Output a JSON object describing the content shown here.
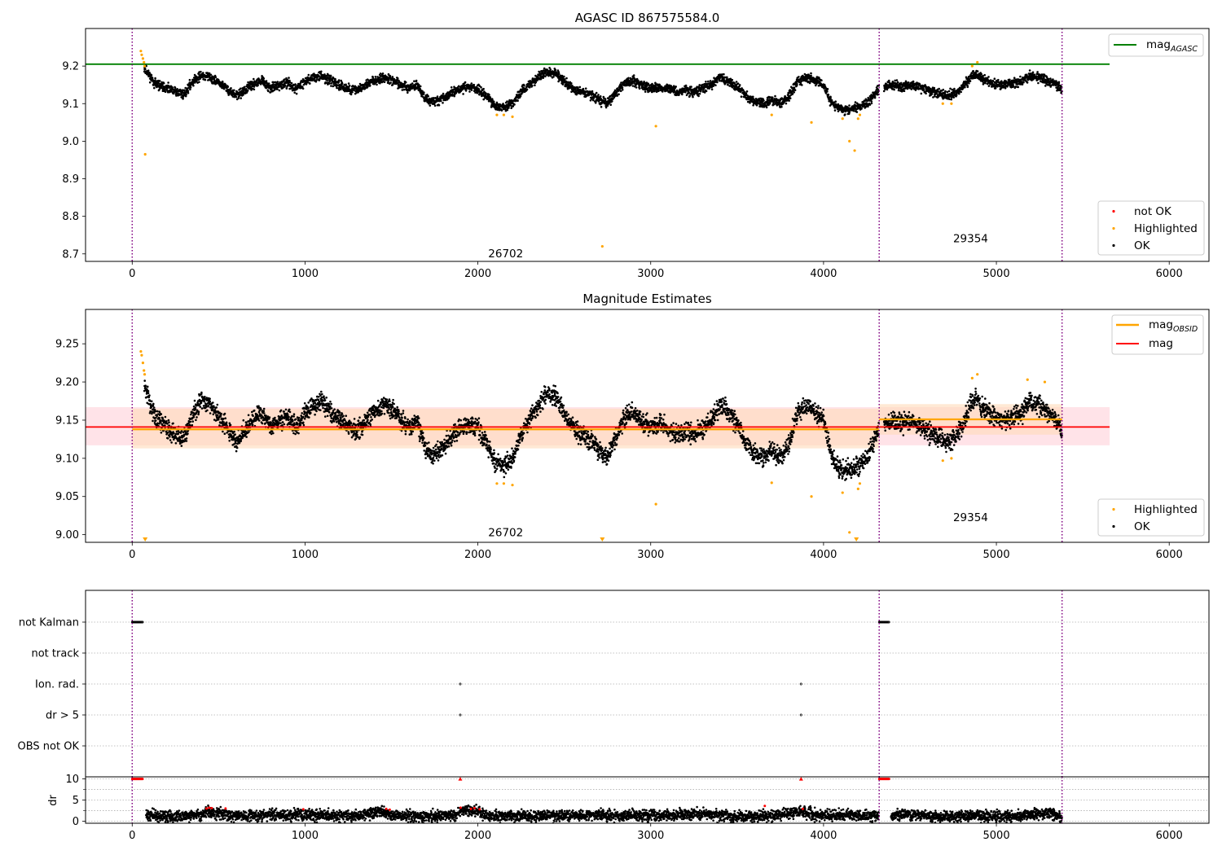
{
  "colors": {
    "ok": "#000000",
    "highlighted": "#ffa500",
    "not_ok": "#ff0000",
    "agasc_line": "#008000",
    "mag_line": "#ff0000",
    "mag_obsid_line": "#ffa500",
    "obsid_boundary": "#800080",
    "mag_band": "#ffc0cb",
    "mag_obsid_band": "#ffdab9"
  },
  "chart_data": [
    {
      "type": "scatter",
      "title": "AGASC ID 867575584.0",
      "xlim": [
        -270,
        6230
      ],
      "ylim": [
        8.68,
        9.3
      ],
      "xticks": [
        "0",
        "1000",
        "2000",
        "3000",
        "4000",
        "5000",
        "6000"
      ],
      "yticks": [
        "8.7",
        "8.8",
        "8.9",
        "9.0",
        "9.1",
        "9.2"
      ],
      "grid": false,
      "obsid_boundaries": [
        0,
        4322,
        5380
      ],
      "obsid_labels": [
        {
          "text": "26702",
          "x": 2161,
          "y": 8.7
        },
        {
          "text": "29354",
          "x": 4851,
          "y": 8.74
        }
      ],
      "reference_lines": [
        {
          "name": "mag_AGASC",
          "y": 9.205,
          "x": [
            -270,
            5655
          ]
        }
      ],
      "legend_lines": {
        "entries": [
          "mag"
        ],
        "subscripts": [
          "AGASC"
        ],
        "placement": "top-right"
      },
      "legend_points": {
        "entries": [
          "not OK",
          "Highlighted",
          "OK"
        ],
        "placement": "lower-right"
      },
      "highlighted_points": [
        [
          50,
          9.24
        ],
        [
          55,
          9.23
        ],
        [
          62,
          9.22
        ],
        [
          68,
          9.21
        ],
        [
          72,
          9.2
        ],
        [
          75,
          8.965
        ],
        [
          2110,
          9.07
        ],
        [
          2150,
          9.07
        ],
        [
          2200,
          9.065
        ],
        [
          2720,
          8.72
        ],
        [
          3030,
          9.04
        ],
        [
          3700,
          9.07
        ],
        [
          3930,
          9.05
        ],
        [
          4110,
          9.06
        ],
        [
          4150,
          9.0
        ],
        [
          4180,
          8.975
        ],
        [
          4200,
          9.06
        ],
        [
          4210,
          9.07
        ],
        [
          4690,
          9.1
        ],
        [
          4740,
          9.1
        ],
        [
          4860,
          9.2
        ],
        [
          4890,
          9.21
        ]
      ],
      "series": [
        {
          "name": "mag",
          "segments": [
            {
              "x": [
                70,
                100,
                130,
                200,
                300,
                350,
                400,
                450,
                500,
                550,
                600,
                650,
                700,
                750,
                800,
                850,
                900,
                950,
                1000,
                1050,
                1100,
                1150,
                1200,
                1250,
                1300,
                1350,
                1400,
                1450,
                1500,
                1550,
                1600,
                1650,
                1700,
                1750,
                1800,
                1850,
                1900,
                1950,
                2000,
                2050,
                2100,
                2150,
                2200,
                2250,
                2300,
                2350,
                2400,
                2450,
                2500,
                2550,
                2600,
                2650,
                2700,
                2750,
                2800,
                2850,
                2900,
                2950,
                3000,
                3050,
                3100,
                3150,
                3200,
                3250,
                3300,
                3350,
                3400,
                3450,
                3500,
                3550,
                3600,
                3650,
                3700,
                3750,
                3800,
                3850,
                3900,
                3950,
                4000,
                4050,
                4100,
                4150,
                4200,
                4250,
                4320
              ],
              "y": [
                9.195,
                9.175,
                9.155,
                9.14,
                9.125,
                9.16,
                9.175,
                9.17,
                9.155,
                9.14,
                9.12,
                9.135,
                9.15,
                9.16,
                9.14,
                9.15,
                9.155,
                9.14,
                9.16,
                9.17,
                9.175,
                9.16,
                9.15,
                9.14,
                9.135,
                9.15,
                9.16,
                9.17,
                9.165,
                9.15,
                9.14,
                9.15,
                9.11,
                9.105,
                9.115,
                9.13,
                9.14,
                9.145,
                9.14,
                9.12,
                9.095,
                9.09,
                9.1,
                9.13,
                9.15,
                9.17,
                9.185,
                9.18,
                9.16,
                9.14,
                9.13,
                9.125,
                9.11,
                9.1,
                9.13,
                9.155,
                9.16,
                9.15,
                9.14,
                9.145,
                9.14,
                9.13,
                9.135,
                9.13,
                9.14,
                9.15,
                9.17,
                9.16,
                9.145,
                9.12,
                9.105,
                9.1,
                9.11,
                9.1,
                9.12,
                9.16,
                9.17,
                9.16,
                9.15,
                9.1,
                9.085,
                9.085,
                9.09,
                9.1,
                9.14
              ]
            },
            {
              "x": [
                4350,
                4400,
                4450,
                4500,
                4550,
                4600,
                4650,
                4700,
                4750,
                4800,
                4850,
                4880,
                4920,
                4960,
                5000,
                5050,
                5100,
                5150,
                5200,
                5250,
                5300,
                5350,
                5380
              ],
              "y": [
                9.145,
                9.15,
                9.145,
                9.15,
                9.145,
                9.135,
                9.13,
                9.12,
                9.125,
                9.14,
                9.17,
                9.18,
                9.165,
                9.16,
                9.15,
                9.15,
                9.155,
                9.16,
                9.175,
                9.17,
                9.16,
                9.15,
                9.135
              ]
            }
          ]
        }
      ]
    },
    {
      "type": "scatter",
      "title": "Magnitude Estimates",
      "xlim": [
        -270,
        6230
      ],
      "ylim": [
        8.99,
        9.295
      ],
      "xticks": [
        "0",
        "1000",
        "2000",
        "3000",
        "4000",
        "5000",
        "6000"
      ],
      "yticks": [
        "9.00",
        "9.05",
        "9.10",
        "9.15",
        "9.20",
        "9.25"
      ],
      "grid": false,
      "obsid_boundaries": [
        0,
        4322,
        5380
      ],
      "obsid_labels": [
        {
          "text": "26702",
          "x": 2161,
          "y": 9.002
        },
        {
          "text": "29354",
          "x": 4851,
          "y": 9.022
        }
      ],
      "reference_lines": [
        {
          "name": "mag",
          "y": 9.141,
          "x": [
            -270,
            5655
          ],
          "band": [
            9.117,
            9.167
          ]
        },
        {
          "name": "mag_OBSID",
          "y": 9.138,
          "x": [
            0,
            4322
          ],
          "band": [
            9.113,
            9.165
          ]
        },
        {
          "name": "mag_OBSID",
          "y": 9.151,
          "x": [
            4322,
            5380
          ],
          "band": [
            9.131,
            9.171
          ]
        }
      ],
      "legend_lines": {
        "entries": [
          "mag",
          "mag"
        ],
        "subscripts": [
          "OBSID",
          ""
        ],
        "placement": "top-right"
      },
      "legend_points": {
        "entries": [
          "Highlighted",
          "OK"
        ],
        "placement": "lower-right"
      },
      "highlighted_points": [
        [
          50,
          9.24
        ],
        [
          55,
          9.235
        ],
        [
          62,
          9.225
        ],
        [
          68,
          9.215
        ],
        [
          72,
          9.21
        ],
        [
          2110,
          9.067
        ],
        [
          2150,
          9.067
        ],
        [
          2200,
          9.065
        ],
        [
          3030,
          9.04
        ],
        [
          3700,
          9.068
        ],
        [
          3930,
          9.05
        ],
        [
          4110,
          9.055
        ],
        [
          4150,
          9.003
        ],
        [
          4200,
          9.06
        ],
        [
          4210,
          9.067
        ],
        [
          4690,
          9.097
        ],
        [
          4740,
          9.1
        ],
        [
          4860,
          9.205
        ],
        [
          4890,
          9.21
        ],
        [
          5180,
          9.203
        ],
        [
          5280,
          9.2
        ]
      ],
      "clipped_points": [
        75,
        2720,
        4190
      ],
      "series": [
        {
          "name": "mag",
          "segments": [
            {
              "x": [
                70,
                100,
                130,
                200,
                300,
                350,
                400,
                450,
                500,
                550,
                600,
                650,
                700,
                750,
                800,
                850,
                900,
                950,
                1000,
                1050,
                1100,
                1150,
                1200,
                1250,
                1300,
                1350,
                1400,
                1450,
                1500,
                1550,
                1600,
                1650,
                1700,
                1750,
                1800,
                1850,
                1900,
                1950,
                2000,
                2050,
                2100,
                2150,
                2200,
                2250,
                2300,
                2350,
                2400,
                2450,
                2500,
                2550,
                2600,
                2650,
                2700,
                2750,
                2800,
                2850,
                2900,
                2950,
                3000,
                3050,
                3100,
                3150,
                3200,
                3250,
                3300,
                3350,
                3400,
                3450,
                3500,
                3550,
                3600,
                3650,
                3700,
                3750,
                3800,
                3850,
                3900,
                3950,
                4000,
                4050,
                4100,
                4150,
                4200,
                4250,
                4320
              ],
              "y": [
                9.195,
                9.175,
                9.155,
                9.14,
                9.125,
                9.16,
                9.175,
                9.17,
                9.155,
                9.14,
                9.12,
                9.135,
                9.15,
                9.16,
                9.14,
                9.15,
                9.155,
                9.14,
                9.16,
                9.17,
                9.175,
                9.16,
                9.15,
                9.14,
                9.135,
                9.15,
                9.16,
                9.17,
                9.165,
                9.15,
                9.14,
                9.15,
                9.11,
                9.105,
                9.115,
                9.13,
                9.14,
                9.145,
                9.14,
                9.12,
                9.095,
                9.09,
                9.1,
                9.13,
                9.15,
                9.17,
                9.185,
                9.18,
                9.16,
                9.14,
                9.13,
                9.125,
                9.11,
                9.1,
                9.13,
                9.155,
                9.16,
                9.15,
                9.14,
                9.145,
                9.14,
                9.13,
                9.135,
                9.13,
                9.14,
                9.15,
                9.17,
                9.16,
                9.145,
                9.12,
                9.105,
                9.1,
                9.11,
                9.1,
                9.12,
                9.16,
                9.17,
                9.16,
                9.15,
                9.1,
                9.085,
                9.085,
                9.09,
                9.1,
                9.14
              ]
            },
            {
              "x": [
                4350,
                4400,
                4450,
                4500,
                4550,
                4600,
                4650,
                4700,
                4750,
                4800,
                4850,
                4880,
                4920,
                4960,
                5000,
                5050,
                5100,
                5150,
                5200,
                5250,
                5300,
                5350,
                5380
              ],
              "y": [
                9.145,
                9.15,
                9.145,
                9.15,
                9.145,
                9.135,
                9.13,
                9.12,
                9.125,
                9.14,
                9.17,
                9.18,
                9.165,
                9.16,
                9.15,
                9.15,
                9.155,
                9.16,
                9.175,
                9.17,
                9.16,
                9.15,
                9.135
              ]
            }
          ]
        }
      ]
    },
    {
      "type": "scatter",
      "xlim": [
        -270,
        6230
      ],
      "xticks": [
        "0",
        "1000",
        "2000",
        "3000",
        "4000",
        "5000",
        "6000"
      ],
      "categories": [
        "not Kalman",
        "not track",
        "Ion. rad.",
        "dr > 5",
        "OBS not OK"
      ],
      "grid": true,
      "obsid_boundaries": [
        0,
        4322,
        5380
      ],
      "flags": {
        "not Kalman": [
          [
            0,
            60
          ],
          [
            4322,
            4380
          ]
        ],
        "Ion. rad.": [
          1898,
          3870
        ],
        "dr > 5": [
          1898,
          3870
        ]
      }
    },
    {
      "type": "scatter",
      "xlim": [
        -270,
        6230
      ],
      "ylim": [
        -0.5,
        10.5
      ],
      "ylabel": "dr",
      "yticks": [
        "0",
        "5",
        "10"
      ],
      "xticks": [
        "0",
        "1000",
        "2000",
        "3000",
        "4000",
        "5000",
        "6000"
      ],
      "grid": true,
      "obsid_boundaries": [
        0,
        4322,
        5380
      ],
      "saturated_runs": [
        [
          0,
          60
        ],
        [
          4322,
          4380
        ]
      ],
      "saturated_points": [
        1898,
        3870
      ],
      "red_points": [
        [
          430,
          3.0
        ],
        [
          445,
          3.2
        ],
        [
          460,
          3.1
        ],
        [
          540,
          3.0
        ],
        [
          990,
          2.8
        ],
        [
          1470,
          2.9
        ],
        [
          1490,
          2.7
        ],
        [
          1900,
          3.2
        ],
        [
          1960,
          2.9
        ],
        [
          1980,
          3.1
        ],
        [
          2010,
          2.8
        ],
        [
          3660,
          3.6
        ],
        [
          3880,
          2.9
        ]
      ],
      "series": [
        {
          "name": "dr",
          "segments": [
            {
              "x": [
                80,
                200,
                400,
                430,
                470,
                550,
                700,
                1000,
                1300,
                1450,
                1500,
                1700,
                1880,
                1920,
                1960,
                2010,
                2050,
                2300,
                2700,
                3000,
                3300,
                3500,
                3700,
                3880,
                3950,
                4200,
                4320
              ],
              "y": [
                1.5,
                1.0,
                1.4,
                2.6,
                2.2,
                1.2,
                1.4,
                1.6,
                1.2,
                2.2,
                1.5,
                1.1,
                1.4,
                2.7,
                2.3,
                2.2,
                1.3,
                1.2,
                1.5,
                1.3,
                1.6,
                1.0,
                1.3,
                2.2,
                1.5,
                1.3,
                1.2
              ]
            },
            {
              "x": [
                4390,
                4500,
                4700,
                4900,
                5100,
                5300,
                5380
              ],
              "y": [
                1.3,
                1.7,
                1.0,
                1.3,
                1.0,
                1.8,
                1.0
              ]
            }
          ]
        }
      ]
    }
  ]
}
